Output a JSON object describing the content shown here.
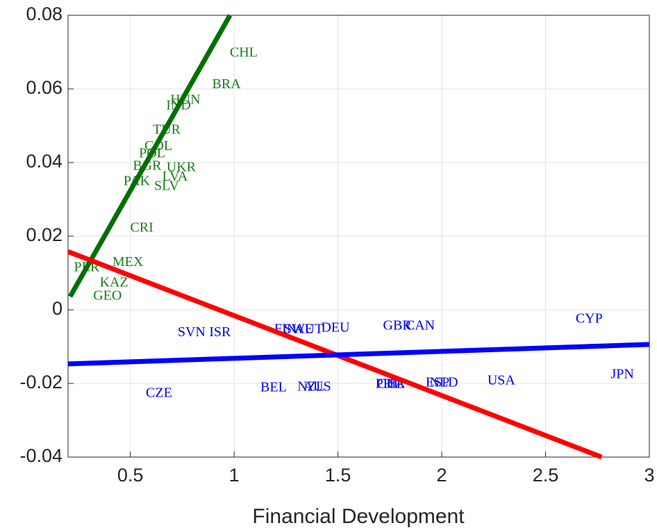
{
  "chart_data": {
    "type": "scatter",
    "x_label": "Financial Development",
    "xlim": [
      0.2,
      3
    ],
    "ylim": [
      -0.04,
      0.08
    ],
    "xticks": [
      0.5,
      1,
      1.5,
      2,
      2.5,
      3
    ],
    "yticks": [
      -0.04,
      -0.02,
      0,
      0.02,
      0.04,
      0.06,
      0.08
    ],
    "grid": true,
    "series": [
      {
        "color": "#1a7a1a",
        "labels": [
          "CHL",
          "BRA",
          "HUN",
          "IND",
          "TUR",
          "COL",
          "POL",
          "BGR",
          "UKR",
          "LVA",
          "PAK",
          "SLV",
          "CRI",
          "MEX",
          "PER",
          "KAZ",
          "GEO"
        ],
        "x": [
          1.046,
          0.963,
          0.765,
          0.732,
          0.675,
          0.635,
          0.605,
          0.581,
          0.745,
          0.715,
          0.531,
          0.675,
          0.555,
          0.488,
          0.29,
          0.421,
          0.39
        ],
        "values": [
          0.0696,
          0.0611,
          0.0568,
          0.0553,
          0.0487,
          0.0443,
          0.0423,
          0.0389,
          0.0385,
          0.036,
          0.0347,
          0.0334,
          0.0221,
          0.0128,
          0.0113,
          0.0072,
          0.0036
        ]
      },
      {
        "color": "#0000ee",
        "labels": [
          "SVN",
          "ISR",
          "FIN",
          "SWE",
          "AUT",
          "DEU",
          "GBR",
          "CAN",
          "CYP",
          "JPN",
          "USA",
          "ESP",
          "NLD",
          "PRT",
          "CHE",
          "ITA",
          "BEL",
          "NZL",
          "AUS",
          "CZE"
        ],
        "x": [
          0.795,
          0.932,
          1.247,
          1.31,
          1.36,
          1.488,
          1.786,
          1.896,
          2.71,
          2.87,
          2.287,
          1.98,
          2.01,
          1.74,
          1.755,
          1.77,
          1.19,
          1.37,
          1.4,
          0.638
        ],
        "values": [
          -0.0063,
          -0.0063,
          -0.0055,
          -0.0055,
          -0.0055,
          -0.0051,
          -0.0045,
          -0.0045,
          -0.0026,
          -0.0177,
          -0.0194,
          -0.02,
          -0.02,
          -0.0204,
          -0.0204,
          -0.0204,
          -0.0213,
          -0.0211,
          -0.0211,
          -0.0228
        ]
      }
    ],
    "lines": [
      {
        "color": "#007000",
        "x": [
          0.21,
          0.98
        ],
        "values": [
          0.0036,
          0.08
        ]
      },
      {
        "color": "#ff0000",
        "x": [
          0.2,
          2.77
        ],
        "values": [
          0.0158,
          -0.04
        ]
      },
      {
        "color": "#0000ff",
        "x": [
          0.2,
          3
        ],
        "values": [
          -0.0147,
          -0.0094
        ]
      }
    ]
  }
}
